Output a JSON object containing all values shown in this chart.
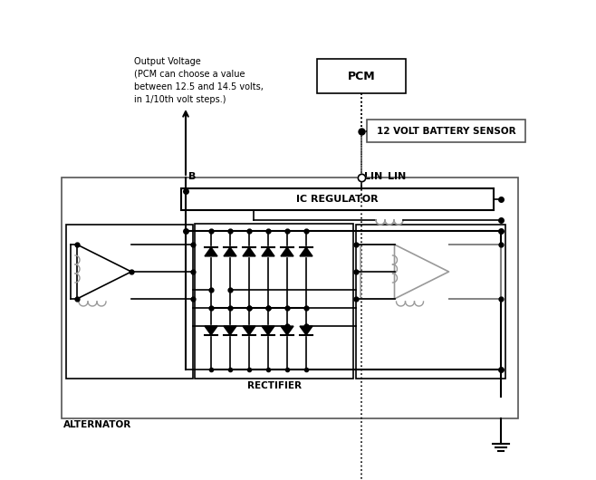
{
  "bg_color": "#ffffff",
  "text_color": "#000000",
  "orange_color": "#cc6600",
  "gray_color": "#999999",
  "pcm_label": "PCM",
  "battery_sensor_label": "12 VOLT BATTERY SENSOR",
  "ic_regulator_label": "IC REGULATOR",
  "b_label": "B",
  "lin_label": "LIN",
  "rectifier_label": "RECTIFIER",
  "alternator_label": "ALTERNATOR",
  "title_text": "Output Voltage\n(PCM can choose a value\nbetween 12.5 and 14.5 volts,\nin 1/10th volt steps.)",
  "fig_width": 6.58,
  "fig_height": 5.3,
  "dpi": 100
}
